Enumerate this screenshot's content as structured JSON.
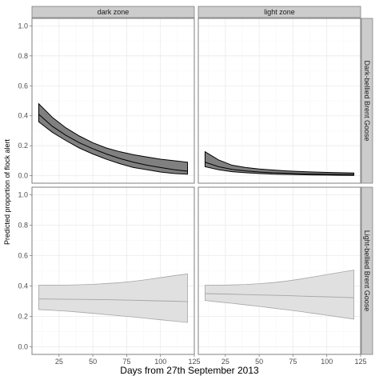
{
  "chart_data": {
    "type": "area",
    "xlabel": "Days from 27th September 2013",
    "ylabel": "Predicted proportion of flock alert",
    "x_ticks": [
      25,
      50,
      75,
      100,
      125
    ],
    "y_ticks": [
      "0.0",
      "0.2",
      "0.4",
      "0.6",
      "0.8",
      "1.0"
    ],
    "xlim": [
      5,
      125
    ],
    "ylim": [
      -0.05,
      1.05
    ],
    "grid": true,
    "columns": [
      "dark zone",
      "light zone"
    ],
    "rows": [
      "Dark-bellied Brent Goose",
      "Light-bellied Brent Goose"
    ],
    "panels": [
      {
        "row": 0,
        "col": 0,
        "fill": "#808080",
        "x": [
          10,
          20,
          30,
          40,
          50,
          60,
          70,
          80,
          90,
          100,
          110,
          120
        ],
        "fit": [
          0.41,
          0.33,
          0.27,
          0.22,
          0.18,
          0.145,
          0.115,
          0.09,
          0.07,
          0.055,
          0.04,
          0.03
        ],
        "lower": [
          0.36,
          0.29,
          0.235,
          0.185,
          0.145,
          0.11,
          0.08,
          0.055,
          0.04,
          0.025,
          0.015,
          0.01
        ],
        "upper": [
          0.48,
          0.39,
          0.32,
          0.265,
          0.22,
          0.185,
          0.16,
          0.14,
          0.125,
          0.11,
          0.1,
          0.09
        ]
      },
      {
        "row": 0,
        "col": 1,
        "fill": "#808080",
        "x": [
          10,
          20,
          30,
          40,
          50,
          60,
          70,
          80,
          90,
          100,
          110,
          120
        ],
        "fit": [
          0.09,
          0.06,
          0.042,
          0.032,
          0.025,
          0.02,
          0.017,
          0.014,
          0.012,
          0.01,
          0.009,
          0.008
        ],
        "lower": [
          0.06,
          0.04,
          0.027,
          0.02,
          0.015,
          0.011,
          0.009,
          0.007,
          0.005,
          0.004,
          0.003,
          0.002
        ],
        "upper": [
          0.16,
          0.105,
          0.07,
          0.055,
          0.045,
          0.038,
          0.032,
          0.028,
          0.025,
          0.022,
          0.02,
          0.018
        ]
      },
      {
        "row": 1,
        "col": 0,
        "fill": "#e0e0e0",
        "x": [
          10,
          20,
          30,
          40,
          50,
          60,
          70,
          80,
          90,
          100,
          110,
          120
        ],
        "fit": [
          0.315,
          0.314,
          0.313,
          0.312,
          0.311,
          0.31,
          0.308,
          0.306,
          0.304,
          0.302,
          0.3,
          0.297
        ],
        "lower": [
          0.245,
          0.24,
          0.235,
          0.228,
          0.22,
          0.212,
          0.204,
          0.196,
          0.187,
          0.178,
          0.169,
          0.16
        ],
        "upper": [
          0.405,
          0.405,
          0.406,
          0.408,
          0.411,
          0.416,
          0.422,
          0.431,
          0.442,
          0.455,
          0.468,
          0.48
        ]
      },
      {
        "row": 1,
        "col": 1,
        "fill": "#e0e0e0",
        "x": [
          10,
          20,
          30,
          40,
          50,
          60,
          70,
          80,
          90,
          100,
          110,
          120
        ],
        "fit": [
          0.35,
          0.348,
          0.346,
          0.344,
          0.341,
          0.339,
          0.337,
          0.334,
          0.331,
          0.329,
          0.326,
          0.323
        ],
        "lower": [
          0.305,
          0.295,
          0.286,
          0.276,
          0.266,
          0.255,
          0.244,
          0.233,
          0.22,
          0.208,
          0.195,
          0.182
        ],
        "upper": [
          0.405,
          0.405,
          0.407,
          0.41,
          0.415,
          0.422,
          0.432,
          0.445,
          0.46,
          0.475,
          0.49,
          0.505
        ]
      }
    ]
  }
}
